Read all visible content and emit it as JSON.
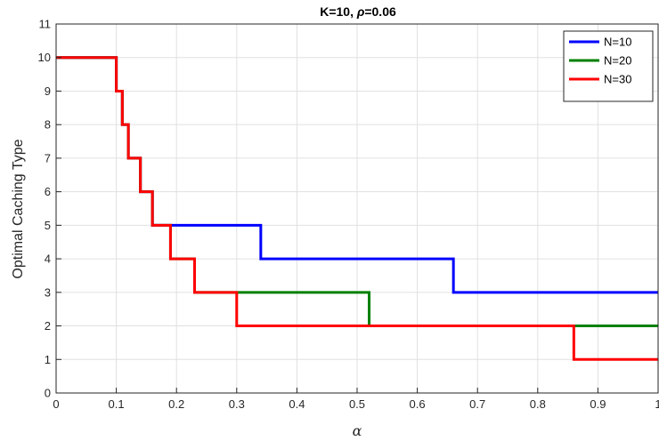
{
  "chart_data": {
    "type": "line",
    "title_prefix": "K=10, ",
    "title_symbol": "ρ",
    "title_suffix": "=0.06",
    "xlabel": "α",
    "ylabel": "Optimal Caching Type",
    "xlim": [
      0,
      1
    ],
    "ylim": [
      0,
      11
    ],
    "xticks": [
      "0",
      "0.1",
      "0.2",
      "0.3",
      "0.4",
      "0.5",
      "0.6",
      "0.7",
      "0.8",
      "0.9",
      "1"
    ],
    "yticks": [
      "0",
      "1",
      "2",
      "3",
      "4",
      "5",
      "6",
      "7",
      "8",
      "9",
      "10",
      "11"
    ],
    "grid": true,
    "legend_position": "top-right",
    "step": "post",
    "series": [
      {
        "name": "N=10",
        "color": "#0000ff",
        "x": [
          0,
          0.1,
          0.11,
          0.12,
          0.14,
          0.16,
          0.34,
          0.66,
          1.0
        ],
        "y": [
          10,
          9,
          8,
          7,
          6,
          5,
          4,
          3,
          3
        ]
      },
      {
        "name": "N=20",
        "color": "#008000",
        "x": [
          0,
          0.1,
          0.11,
          0.12,
          0.14,
          0.16,
          0.19,
          0.23,
          0.52,
          1.0
        ],
        "y": [
          10,
          9,
          8,
          7,
          6,
          5,
          4,
          3,
          2,
          2
        ]
      },
      {
        "name": "N=30",
        "color": "#ff0000",
        "x": [
          0,
          0.1,
          0.11,
          0.12,
          0.14,
          0.16,
          0.19,
          0.23,
          0.3,
          0.86,
          1.0
        ],
        "y": [
          10,
          9,
          8,
          7,
          6,
          5,
          4,
          3,
          2,
          1,
          1
        ]
      }
    ]
  }
}
